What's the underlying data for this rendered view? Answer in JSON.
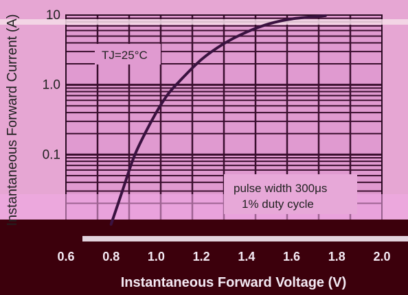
{
  "chart_data": {
    "type": "line",
    "xlabel": "Instantaneous Forward Voltage (V)",
    "ylabel": "Instantaneous Forward Current (A)",
    "y_scale": "log",
    "xlim": [
      0.6,
      2.0
    ],
    "ylim": [
      0.01,
      10
    ],
    "x_ticks": [
      "0.6",
      "0.8",
      "1.0",
      "1.2",
      "1.4",
      "1.6",
      "1.8",
      "2.0"
    ],
    "y_ticks": [
      "10",
      "1.0",
      "0.1"
    ],
    "grid": true,
    "annotations": {
      "temperature": "TJ=25°C",
      "pulse_width": "pulse width 300μs",
      "duty_cycle": "1% duty cycle"
    },
    "series": [
      {
        "x": [
          0.8,
          0.85,
          0.9,
          0.95,
          1.0,
          1.05,
          1.1,
          1.2,
          1.3,
          1.4,
          1.5,
          1.6,
          1.75
        ],
        "y": [
          0.01,
          0.03,
          0.09,
          0.2,
          0.4,
          0.72,
          1.1,
          2.3,
          3.9,
          5.7,
          7.5,
          8.8,
          9.8
        ]
      }
    ]
  },
  "colors": {
    "background": "#e6a6d3",
    "plot_area": "#e09ad0",
    "grid": "#3a0f2e",
    "curve": "#3a1240",
    "bottom_band": "#3c000c"
  }
}
